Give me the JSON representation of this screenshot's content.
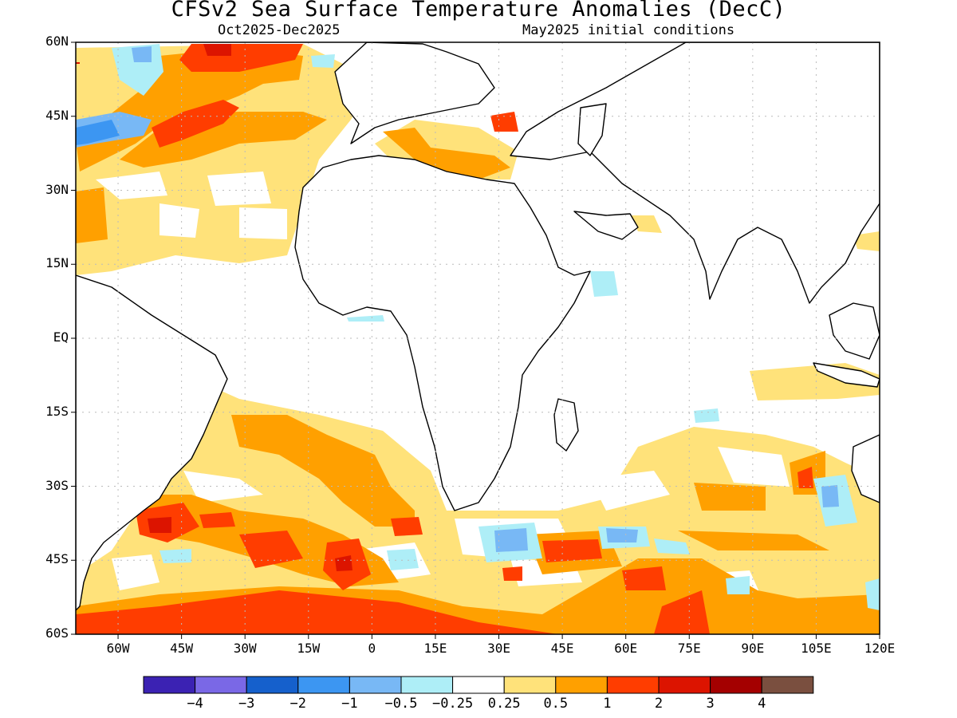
{
  "header": {
    "title": "CFSv2 Sea Surface Temperature Anomalies (DecC)",
    "period": "Oct2025-Dec2025",
    "initial_conditions": "May2025 initial conditions"
  },
  "axes": {
    "lat_labels": [
      "60N",
      "45N",
      "30N",
      "15N",
      "EQ",
      "15S",
      "30S",
      "45S",
      "60S"
    ],
    "lon_labels": [
      "60W",
      "45W",
      "30W",
      "15W",
      "0",
      "15E",
      "30E",
      "45E",
      "60E",
      "75E",
      "90E",
      "105E",
      "120E"
    ]
  },
  "colorbar": {
    "labels": [
      "-4",
      "-3",
      "-2",
      "-1",
      "-0.5",
      "-0.25",
      "0.25",
      "0.5",
      "1",
      "2",
      "3",
      "4"
    ],
    "colors": [
      "#3b22b3",
      "#7a68e6",
      "#1560cc",
      "#3c96f2",
      "#78b8f5",
      "#aeeef7",
      "#ffffff",
      "#ffe27a",
      "#ffa000",
      "#ff3d00",
      "#dc1400",
      "#a40000",
      "#7a4f3f"
    ]
  },
  "map_colors": {
    "ocean_background": "#ffffff",
    "coastline": "#000000",
    "grid": "#bbbbbb"
  }
}
